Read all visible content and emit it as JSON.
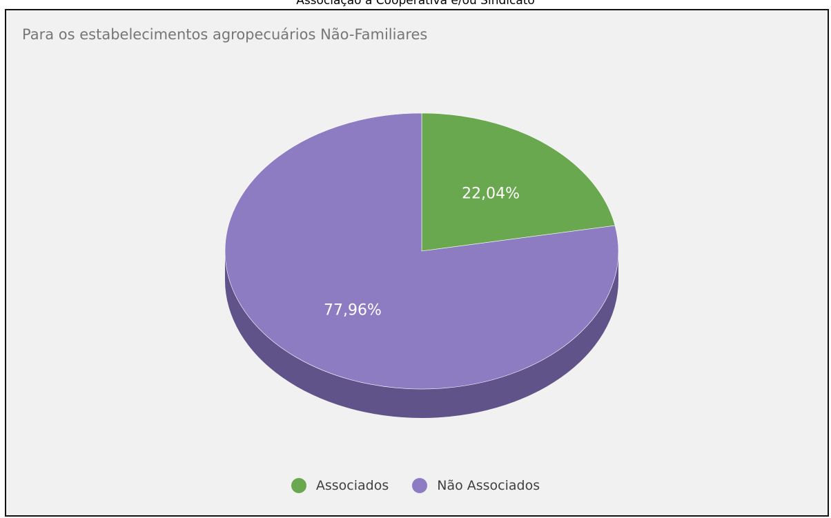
{
  "header": {
    "title": "Associação a Cooperativa e/ou Sindicato"
  },
  "chart_data": {
    "type": "pie",
    "title": "Para os estabelecimentos agropecuários Não-Familiares",
    "slices": [
      {
        "name": "Associados",
        "value": 22.04,
        "label": "22,04%",
        "color": "#6aa84f",
        "side_color": "#4a7a37"
      },
      {
        "name": "Não Associados",
        "value": 77.96,
        "label": "77,96%",
        "color": "#8e7cc3",
        "side_color": "#5f5389"
      }
    ],
    "legend_position": "bottom",
    "style": "3d"
  }
}
